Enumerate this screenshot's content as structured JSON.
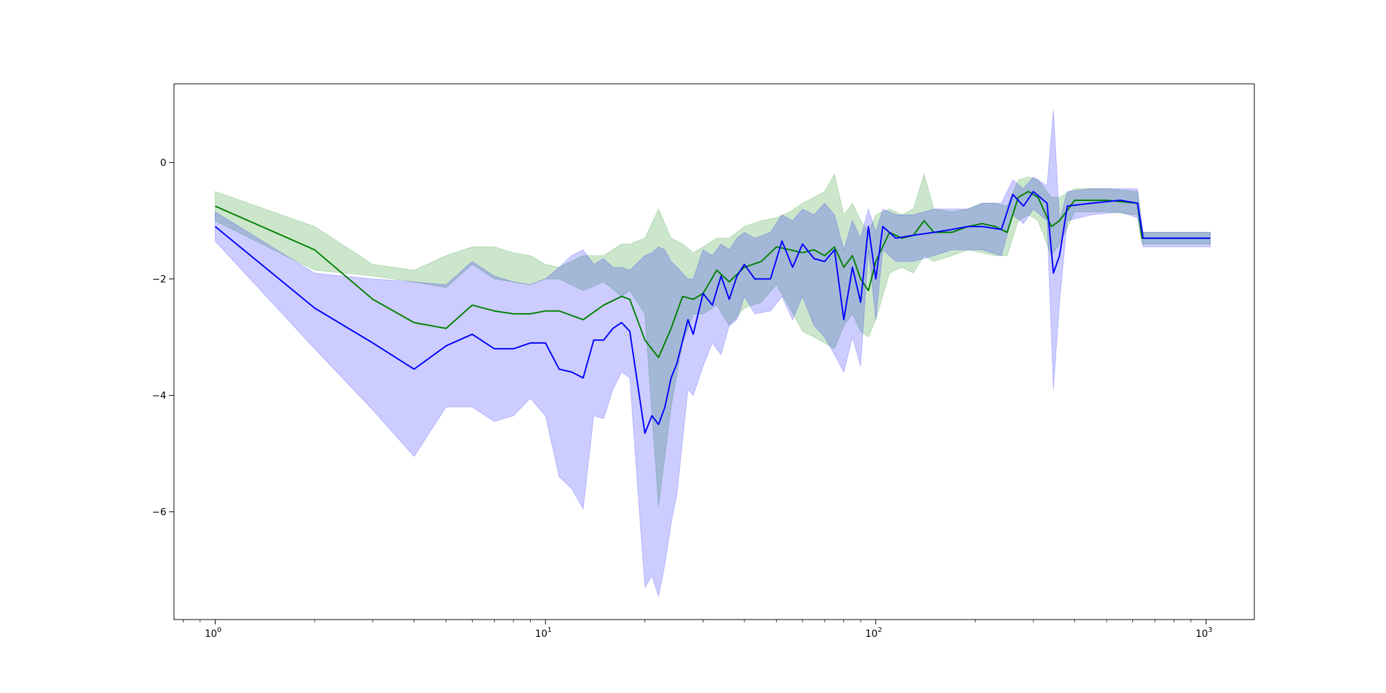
{
  "chart_data": {
    "type": "line",
    "title": "",
    "xlabel": "",
    "ylabel": "",
    "x_scale": "log",
    "xlim": [
      0.75,
      1400
    ],
    "ylim": [
      -7.85,
      1.35
    ],
    "grid": false,
    "legend": "none",
    "x_ticks": [
      {
        "value": 1,
        "base": "10",
        "exp": "0"
      },
      {
        "value": 10,
        "base": "10",
        "exp": "1"
      },
      {
        "value": 100,
        "base": "10",
        "exp": "2"
      },
      {
        "value": 1000,
        "base": "10",
        "exp": "3"
      }
    ],
    "y_ticks": [
      {
        "value": 0,
        "label": "0"
      },
      {
        "value": -2,
        "label": "−2"
      },
      {
        "value": -4,
        "label": "−4"
      },
      {
        "value": -6,
        "label": "−6"
      }
    ],
    "series": [
      {
        "color": "#008000",
        "band_color": "#008000",
        "band_opacity": 0.2,
        "points": [
          [
            1,
            -0.75,
            -0.5,
            -1.0
          ],
          [
            2,
            -1.5,
            -1.1,
            -1.85
          ],
          [
            3,
            -2.35,
            -1.75,
            -1.95
          ],
          [
            4,
            -2.75,
            -1.85,
            -2.05
          ],
          [
            5,
            -2.85,
            -1.6,
            -2.15
          ],
          [
            6,
            -2.45,
            -1.45,
            -1.75
          ],
          [
            7,
            -2.55,
            -1.45,
            -2.0
          ],
          [
            8,
            -2.6,
            -1.55,
            -2.05
          ],
          [
            9,
            -2.6,
            -1.6,
            -2.1
          ],
          [
            10,
            -2.55,
            -1.75,
            -2.0
          ],
          [
            11,
            -2.55,
            -1.8,
            -2.0
          ],
          [
            13,
            -2.7,
            -1.6,
            -2.2
          ],
          [
            15,
            -2.45,
            -1.6,
            -2.05
          ],
          [
            17,
            -2.3,
            -1.4,
            -2.3
          ],
          [
            18,
            -2.35,
            -1.4,
            -2.2
          ],
          [
            20,
            -3.05,
            -1.3,
            -2.6
          ],
          [
            22,
            -3.35,
            -0.8,
            -5.9
          ],
          [
            24,
            -2.85,
            -1.3,
            -4.2
          ],
          [
            26,
            -2.3,
            -1.4,
            -3.1
          ],
          [
            28,
            -2.35,
            -1.55,
            -2.6
          ],
          [
            30,
            -2.25,
            -1.45,
            -2.6
          ],
          [
            33,
            -1.85,
            -1.3,
            -2.45
          ],
          [
            36,
            -2.05,
            -1.3,
            -2.8
          ],
          [
            40,
            -1.8,
            -1.1,
            -2.5
          ],
          [
            45,
            -1.7,
            -1.0,
            -2.4
          ],
          [
            50,
            -1.45,
            -0.95,
            -2.1
          ],
          [
            55,
            -1.5,
            -0.85,
            -2.5
          ],
          [
            60,
            -1.55,
            -0.7,
            -2.9
          ],
          [
            65,
            -1.5,
            -0.6,
            -3.0
          ],
          [
            70,
            -1.6,
            -0.5,
            -3.1
          ],
          [
            75,
            -1.45,
            -0.2,
            -3.2
          ],
          [
            80,
            -1.8,
            -0.9,
            -2.8
          ],
          [
            85,
            -1.6,
            -0.7,
            -2.6
          ],
          [
            90,
            -2.0,
            -1.0,
            -2.9
          ],
          [
            95,
            -2.2,
            -1.2,
            -3.0
          ],
          [
            100,
            -1.7,
            -0.9,
            -2.7
          ],
          [
            110,
            -1.2,
            -0.8,
            -1.9
          ],
          [
            120,
            -1.3,
            -0.9,
            -1.8
          ],
          [
            130,
            -1.25,
            -0.8,
            -1.9
          ],
          [
            140,
            -1.0,
            -0.2,
            -1.6
          ],
          [
            150,
            -1.2,
            -0.8,
            -1.7
          ],
          [
            170,
            -1.2,
            -0.85,
            -1.6
          ],
          [
            190,
            -1.1,
            -0.8,
            -1.5
          ],
          [
            210,
            -1.05,
            -0.7,
            -1.55
          ],
          [
            230,
            -1.1,
            -0.7,
            -1.6
          ],
          [
            250,
            -1.2,
            -0.75,
            -1.6
          ],
          [
            270,
            -0.6,
            -0.3,
            -1.0
          ],
          [
            290,
            -0.5,
            -0.25,
            -0.9
          ],
          [
            310,
            -0.6,
            -0.3,
            -1.0
          ],
          [
            340,
            -1.1,
            -0.6,
            -1.6
          ],
          [
            360,
            -1.0,
            -0.6,
            -1.4
          ],
          [
            400,
            -0.65,
            -0.45,
            -0.85
          ],
          [
            500,
            -0.65,
            -0.45,
            -0.85
          ],
          [
            620,
            -0.7,
            -0.5,
            -0.9
          ],
          [
            640,
            -1.3,
            -1.2,
            -1.4
          ],
          [
            800,
            -1.3,
            -1.2,
            -1.4
          ],
          [
            1030,
            -1.3,
            -1.2,
            -1.4
          ]
        ]
      },
      {
        "color": "#0000ff",
        "band_color": "#0000ff",
        "band_opacity": 0.2,
        "points": [
          [
            1,
            -1.1,
            -0.85,
            -1.35
          ],
          [
            2,
            -2.5,
            -1.9,
            -3.2
          ],
          [
            3,
            -3.1,
            -2.0,
            -4.25
          ],
          [
            4,
            -3.55,
            -2.05,
            -5.05
          ],
          [
            5,
            -3.15,
            -2.1,
            -4.2
          ],
          [
            6,
            -2.95,
            -1.7,
            -4.2
          ],
          [
            7,
            -3.2,
            -1.95,
            -4.45
          ],
          [
            8,
            -3.2,
            -2.05,
            -4.35
          ],
          [
            9,
            -3.1,
            -2.1,
            -4.05
          ],
          [
            10,
            -3.1,
            -2.0,
            -4.35
          ],
          [
            11,
            -3.55,
            -1.8,
            -5.4
          ],
          [
            12,
            -3.6,
            -1.6,
            -5.6
          ],
          [
            13,
            -3.7,
            -1.5,
            -5.95
          ],
          [
            14,
            -3.05,
            -1.75,
            -4.35
          ],
          [
            15,
            -3.05,
            -1.65,
            -4.4
          ],
          [
            16,
            -2.85,
            -1.8,
            -3.9
          ],
          [
            17,
            -2.75,
            -1.8,
            -3.6
          ],
          [
            18,
            -2.9,
            -1.85,
            -3.7
          ],
          [
            20,
            -4.65,
            -1.6,
            -7.3
          ],
          [
            21,
            -4.35,
            -1.55,
            -7.1
          ],
          [
            22,
            -4.5,
            -1.45,
            -7.45
          ],
          [
            23,
            -4.2,
            -1.5,
            -6.9
          ],
          [
            24,
            -3.7,
            -1.7,
            -6.2
          ],
          [
            25,
            -3.45,
            -1.8,
            -5.7
          ],
          [
            27,
            -2.7,
            -2.0,
            -3.9
          ],
          [
            28,
            -2.95,
            -2.0,
            -4.0
          ],
          [
            30,
            -2.25,
            -1.5,
            -3.5
          ],
          [
            32,
            -2.45,
            -1.6,
            -3.1
          ],
          [
            34,
            -1.95,
            -1.4,
            -3.3
          ],
          [
            36,
            -2.35,
            -1.5,
            -2.8
          ],
          [
            38,
            -1.95,
            -1.3,
            -2.7
          ],
          [
            40,
            -1.75,
            -1.2,
            -2.3
          ],
          [
            43,
            -2.0,
            -1.3,
            -2.6
          ],
          [
            48,
            -2.0,
            -1.2,
            -2.55
          ],
          [
            52,
            -1.35,
            -0.9,
            -2.3
          ],
          [
            56,
            -1.8,
            -1.0,
            -2.7
          ],
          [
            60,
            -1.4,
            -0.8,
            -2.3
          ],
          [
            65,
            -1.65,
            -0.9,
            -2.8
          ],
          [
            70,
            -1.7,
            -0.7,
            -3.0
          ],
          [
            75,
            -1.5,
            -0.9,
            -3.3
          ],
          [
            80,
            -2.7,
            -1.5,
            -3.6
          ],
          [
            85,
            -1.8,
            -1.0,
            -3.0
          ],
          [
            90,
            -2.4,
            -1.3,
            -3.5
          ],
          [
            95,
            -1.1,
            -0.8,
            -1.5
          ],
          [
            100,
            -2.0,
            -1.2,
            -2.7
          ],
          [
            105,
            -1.1,
            -0.8,
            -1.5
          ],
          [
            115,
            -1.3,
            -0.9,
            -1.7
          ],
          [
            130,
            -1.25,
            -0.9,
            -1.7
          ],
          [
            150,
            -1.2,
            -0.8,
            -1.6
          ],
          [
            170,
            -1.15,
            -0.8,
            -1.5
          ],
          [
            190,
            -1.1,
            -0.8,
            -1.5
          ],
          [
            210,
            -1.1,
            -0.7,
            -1.5
          ],
          [
            240,
            -1.15,
            -0.7,
            -1.6
          ],
          [
            260,
            -0.55,
            -0.3,
            -0.9
          ],
          [
            280,
            -0.75,
            -0.45,
            -1.05
          ],
          [
            300,
            -0.5,
            -0.25,
            -0.8
          ],
          [
            330,
            -0.7,
            -0.4,
            -1.0
          ],
          [
            345,
            -1.9,
            0.9,
            -3.9
          ],
          [
            360,
            -1.6,
            -1.0,
            -2.4
          ],
          [
            380,
            -0.75,
            -0.5,
            -1.0
          ],
          [
            450,
            -0.7,
            -0.45,
            -0.9
          ],
          [
            550,
            -0.65,
            -0.45,
            -0.85
          ],
          [
            620,
            -0.7,
            -0.45,
            -0.95
          ],
          [
            645,
            -1.3,
            -1.2,
            -1.45
          ],
          [
            800,
            -1.3,
            -1.2,
            -1.45
          ],
          [
            1030,
            -1.3,
            -1.2,
            -1.45
          ]
        ]
      }
    ]
  }
}
